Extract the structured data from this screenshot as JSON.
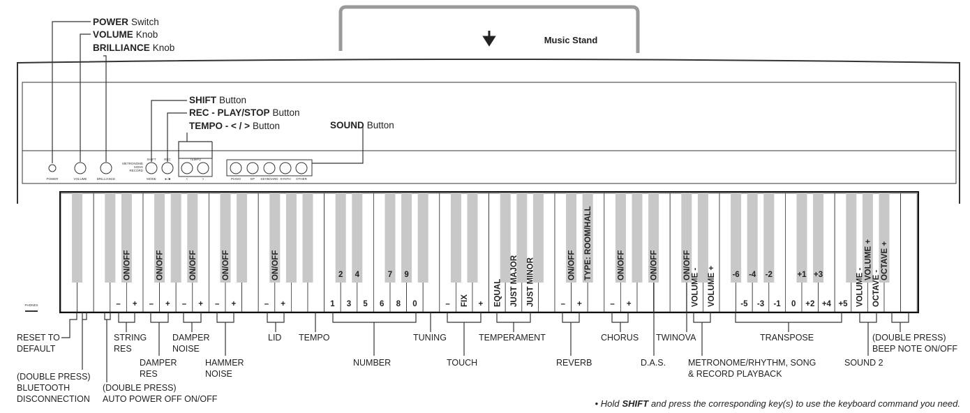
{
  "top_callouts": [
    {
      "bold": "POWER",
      "text": "Switch"
    },
    {
      "bold": "VOLUME",
      "text": "Knob"
    },
    {
      "bold": "BRILLIANCE",
      "text": "Knob"
    },
    {
      "bold": "SHIFT",
      "text": "Button"
    },
    {
      "bold": "REC - PLAY/STOP",
      "text": "Button"
    },
    {
      "bold": "TEMPO - < / >",
      "text": "Button"
    },
    {
      "bold": "SOUND",
      "text": "Button"
    }
  ],
  "music_stand": "Music Stand",
  "panel_labels": [
    "POWER",
    "VOLUME",
    "BRILLIANCE",
    "METRONOME",
    "SONG",
    "RECORD",
    "SHIFT",
    "REC",
    "TEMPO",
    "MODE",
    "►/■",
    "<",
    ">",
    "PIANO",
    "EP",
    "KEYBOARD",
    "SYNTH",
    "OTHER",
    "PHONES"
  ],
  "white_keys": [
    null,
    null,
    null,
    "–",
    "+",
    "–",
    "+",
    "–",
    "+",
    "–",
    "+",
    null,
    "–",
    "+",
    null,
    null,
    "1",
    "3",
    "5",
    "6",
    "8",
    "0",
    null,
    "–",
    "FIX",
    "+",
    "EQUAL",
    "JUST MAJOR",
    "JUST MINOR",
    null,
    "–",
    "+",
    null,
    "–",
    "+",
    null,
    null,
    null,
    "VOLUME -",
    "VOLUME +",
    null,
    "-5",
    "-3",
    "-1",
    "0",
    "+2",
    "+4",
    "+5",
    "VOLUME -",
    "OCTAVE -",
    null,
    null
  ],
  "black_keys": [
    null,
    null,
    "ON/OFF",
    "ON/OFF",
    null,
    "ON/OFF",
    "ON/OFF",
    null,
    "ON/OFF",
    null,
    null,
    "2",
    "4",
    "7",
    "9",
    null,
    null,
    null,
    null,
    null,
    null,
    "ON/OFF",
    "TYPE: ROOM/HALL",
    "ON/OFF",
    null,
    "ON/OFF",
    "ON/OFF",
    null,
    "-6",
    "-4",
    "-2",
    "+1",
    "+3",
    null,
    "VOLUME +",
    "OCTAVE +"
  ],
  "bottom_labels": [
    [
      "RESET TO",
      "DEFAULT"
    ],
    [
      "(DOUBLE PRESS)",
      "BLUETOOTH",
      "DISCONNECTION"
    ],
    [
      "STRING",
      "RES"
    ],
    [
      "DAMPER",
      "RES"
    ],
    [
      "(DOUBLE PRESS)",
      "AUTO POWER OFF ON/OFF"
    ],
    [
      "DAMPER",
      "NOISE"
    ],
    [
      "HAMMER",
      "NOISE"
    ],
    [
      "LID"
    ],
    [
      "TEMPO"
    ],
    [
      "NUMBER"
    ],
    [
      "TUNING"
    ],
    [
      "TOUCH"
    ],
    [
      "TEMPERAMENT"
    ],
    [
      "REVERB"
    ],
    [
      "CHORUS"
    ],
    [
      "D.A.S."
    ],
    [
      "TWINOVA"
    ],
    [
      "METRONOME/RHYTHM, SONG",
      "& RECORD PLAYBACK"
    ],
    [
      "TRANSPOSE"
    ],
    [
      "SOUND 2"
    ],
    [
      "(DOUBLE PRESS)",
      "BEEP NOTE ON/OFF"
    ]
  ],
  "footnote": [
    "• Hold",
    "SHIFT",
    "and press the corresponding key(s) to use the keyboard command you need."
  ]
}
